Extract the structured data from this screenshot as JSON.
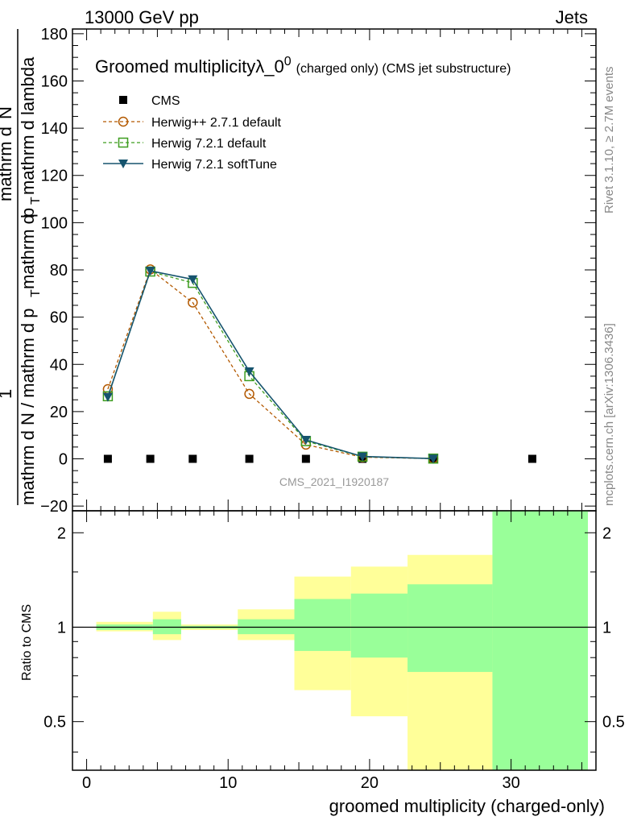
{
  "header": {
    "energy_label": "13000 GeV pp",
    "process_label": "Jets"
  },
  "side_labels": {
    "rivet": "Rivet 3.1.10, ≥ 2.7M events",
    "mcplots": "mcplots.cern.ch [arXiv:1306.3436]"
  },
  "watermark": "CMS_2021_I1920187",
  "chart_data": [
    {
      "type": "line",
      "title": "Groomed multiplicityλ_0",
      "title_sup": "0",
      "title_suffix": "(charged only) (CMS jet substructure)",
      "xlabel": "groomed multiplicity (charged-only)",
      "ylabel": {
        "numerator_top": "1",
        "denominator": "mathrm d N / mathrm d p",
        "fraction_num": "mathrm d",
        "fraction_num2": "N",
        "denominator2": "mathrm d p",
        "subscript": "T",
        "denominator_tail": "mathrm d lambda",
        "lead": "mathrm d"
      },
      "ylabel_parts": {
        "left": "mathrm d N / mathrm d p",
        "left_sub": "T",
        "right": "mathrm d",
        "right_tail": "p",
        "right_sub": "T",
        "right_end": "mathrm d lambda",
        "top": "mathrm d",
        "top2": "N",
        "one": "1"
      },
      "xlim": [
        -1,
        36
      ],
      "ylim": [
        -22,
        182
      ],
      "xticks": [
        "0",
        "10",
        "20",
        "30"
      ],
      "xtick_values": [
        0,
        10,
        20,
        30
      ],
      "yticks": [
        "−20",
        "0",
        "20",
        "40",
        "60",
        "80",
        "100",
        "120",
        "140",
        "160",
        "180"
      ],
      "ytick_values": [
        -20,
        0,
        20,
        40,
        60,
        80,
        100,
        120,
        140,
        160,
        180
      ],
      "legend": [
        "CMS",
        "Herwig++ 2.7.1 default",
        "Herwig 7.2.1 default",
        "Herwig 7.2.1 softTune"
      ],
      "series": [
        {
          "name": "CMS",
          "color": "#000000",
          "marker": "square",
          "x": [
            1.5,
            4.5,
            7.5,
            11.5,
            15.5,
            19.5,
            24.5,
            31.5
          ],
          "values": [
            0,
            0,
            0,
            0,
            0,
            0,
            0,
            0
          ]
        },
        {
          "name": "Herwig++ 2.7.1 default",
          "color": "#b35900",
          "marker": "circle",
          "x": [
            1.5,
            4.5,
            7.5,
            11.5,
            15.5,
            19.5,
            24.5
          ],
          "values": [
            29.5,
            80.2,
            66.2,
            27.5,
            6.0,
            0.7,
            0.1
          ]
        },
        {
          "name": "Herwig 7.2.1 default",
          "color": "#3d9d1f",
          "marker": "square-open",
          "x": [
            1.5,
            4.5,
            7.5,
            11.5,
            15.5,
            19.5,
            24.5
          ],
          "values": [
            26.5,
            79.3,
            74.5,
            35.0,
            7.5,
            0.9,
            0.1
          ]
        },
        {
          "name": "Herwig 7.2.1 softTune",
          "color": "#16546e",
          "marker": "triangle-down",
          "x": [
            1.5,
            4.5,
            7.5,
            11.5,
            15.5,
            19.5,
            24.5
          ],
          "values": [
            26.2,
            79.6,
            76.0,
            37.0,
            8.0,
            1.0,
            0.1
          ]
        }
      ]
    },
    {
      "type": "area",
      "ylabel": "Ratio to CMS",
      "xlim": [
        -1,
        36
      ],
      "ylim_log": [
        0.35,
        2.35
      ],
      "yticks": [
        "0.5",
        "1",
        "2"
      ],
      "ytick_values": [
        0.5,
        1,
        2
      ],
      "reference_line": 1,
      "bands": [
        {
          "x": [
            0,
            4
          ],
          "outer": [
            0.97,
            1.04
          ],
          "inner": [
            0.98,
            1.02
          ]
        },
        {
          "x": [
            4,
            6
          ],
          "outer": [
            0.91,
            1.12
          ],
          "inner": [
            0.95,
            1.06
          ]
        },
        {
          "x": [
            6,
            10
          ],
          "outer": [
            0.98,
            1.02
          ],
          "inner": [
            0.99,
            1.01
          ]
        },
        {
          "x": [
            10,
            14
          ],
          "outer": [
            0.91,
            1.14
          ],
          "inner": [
            0.95,
            1.06
          ]
        },
        {
          "x": [
            14,
            18
          ],
          "outer": [
            0.63,
            1.45
          ],
          "inner": [
            0.84,
            1.23
          ]
        },
        {
          "x": [
            18,
            22
          ],
          "outer": [
            0.52,
            1.56
          ],
          "inner": [
            0.8,
            1.28
          ]
        },
        {
          "x": [
            22,
            28
          ],
          "outer": [
            0.35,
            1.7
          ],
          "inner": [
            0.72,
            1.37
          ]
        },
        {
          "x": [
            28,
            36
          ],
          "outer": [
            0.35,
            2.35
          ],
          "inner": [
            0.35,
            2.35
          ]
        }
      ],
      "band_colors": {
        "outer": "#ffff99",
        "inner": "#99ff99"
      }
    }
  ]
}
